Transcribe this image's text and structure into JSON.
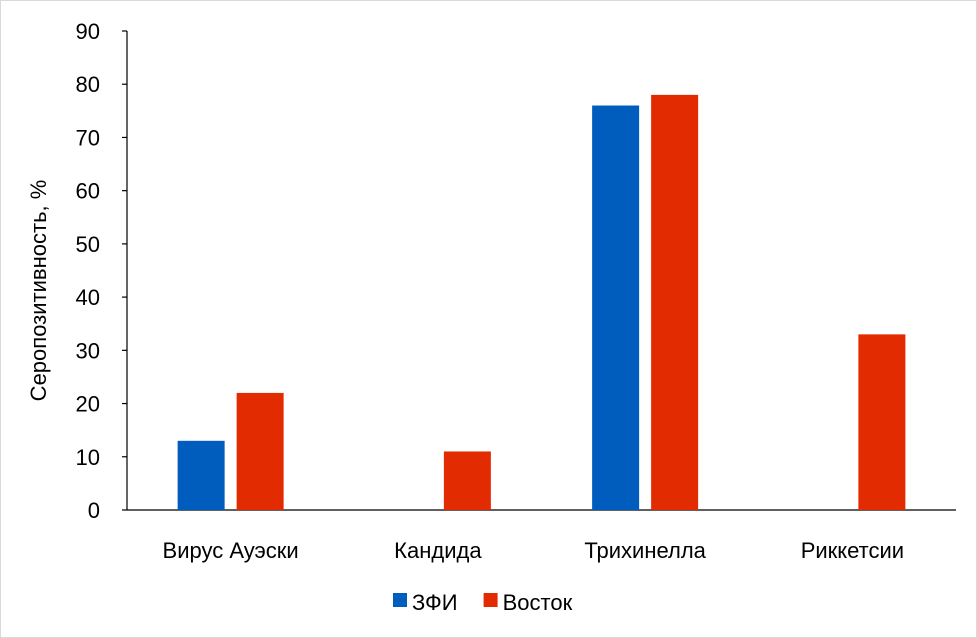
{
  "chart_data": {
    "type": "bar",
    "title": "",
    "xlabel": "",
    "ylabel": "Серопозитивность, %",
    "ylim": [
      0,
      90
    ],
    "yticks": [
      0,
      10,
      20,
      30,
      40,
      50,
      60,
      70,
      80,
      90
    ],
    "grid": false,
    "legend_position": "bottom",
    "categories": [
      "Вирус Ауэски",
      "Кандида",
      "Трихинелла",
      "Риккетсии"
    ],
    "series": [
      {
        "name": "ЗФИ",
        "color": "#005dbd",
        "values": [
          13,
          0,
          76,
          0
        ]
      },
      {
        "name": "Восток",
        "color": "#e22b00",
        "values": [
          22,
          11,
          78,
          33
        ]
      }
    ]
  }
}
